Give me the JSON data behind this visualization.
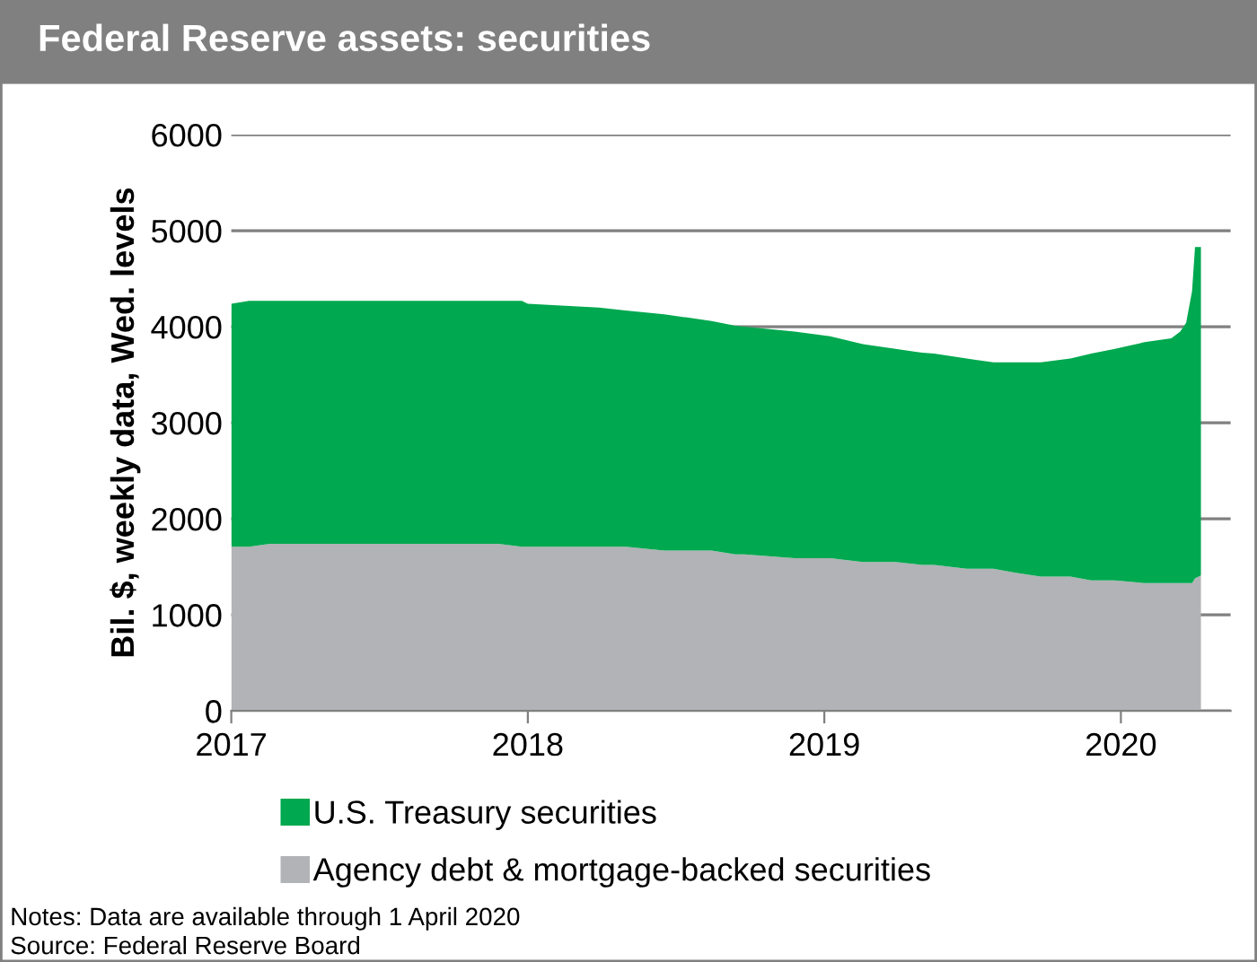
{
  "chart_data": {
    "type": "area",
    "stacked": true,
    "title": "Federal Reserve assets: securities",
    "ylabel": "Bil. $, weekly data, Wed. levels",
    "x": [
      2017.0,
      2017.06,
      2017.13,
      2017.9,
      2017.98,
      2018.0,
      2018.24,
      2018.33,
      2018.46,
      2018.62,
      2018.7,
      2018.73,
      2018.9,
      2019.02,
      2019.13,
      2019.24,
      2019.33,
      2019.37,
      2019.48,
      2019.5,
      2019.57,
      2019.64,
      2019.73,
      2019.83,
      2019.9,
      2019.98,
      2020.08,
      2020.17,
      2020.2,
      2020.22,
      2020.24,
      2020.25,
      2020.27
    ],
    "series": [
      {
        "name": "Agency debt & mortgage-backed securities",
        "color": "#b1b3b6",
        "values": [
          1710,
          1710,
          1740,
          1740,
          1710,
          1710,
          1710,
          1710,
          1670,
          1670,
          1630,
          1630,
          1590,
          1590,
          1550,
          1550,
          1520,
          1520,
          1480,
          1480,
          1480,
          1440,
          1400,
          1400,
          1360,
          1360,
          1330,
          1330,
          1330,
          1330,
          1330,
          1380,
          1410
        ]
      },
      {
        "name": "U.S. Treasury securities",
        "color": "#00a84f",
        "values": [
          2530,
          2560,
          2530,
          2530,
          2560,
          2530,
          2490,
          2460,
          2460,
          2390,
          2380,
          2370,
          2360,
          2310,
          2270,
          2220,
          2210,
          2200,
          2190,
          2180,
          2150,
          2190,
          2230,
          2270,
          2360,
          2410,
          2510,
          2550,
          2620,
          2710,
          3040,
          3450,
          3420
        ]
      }
    ],
    "xlim": [
      2017,
      2020.37
    ],
    "xticks": [
      2017,
      2018,
      2019,
      2020
    ],
    "ylim": [
      0,
      6000
    ],
    "yticks": [
      0,
      1000,
      2000,
      3000,
      4000,
      5000,
      6000
    ],
    "grid": "y",
    "legend": "bottom",
    "annotations": [
      "Notes: Data are available through 1 April 2020",
      "Source: Federal Reserve Board"
    ]
  }
}
